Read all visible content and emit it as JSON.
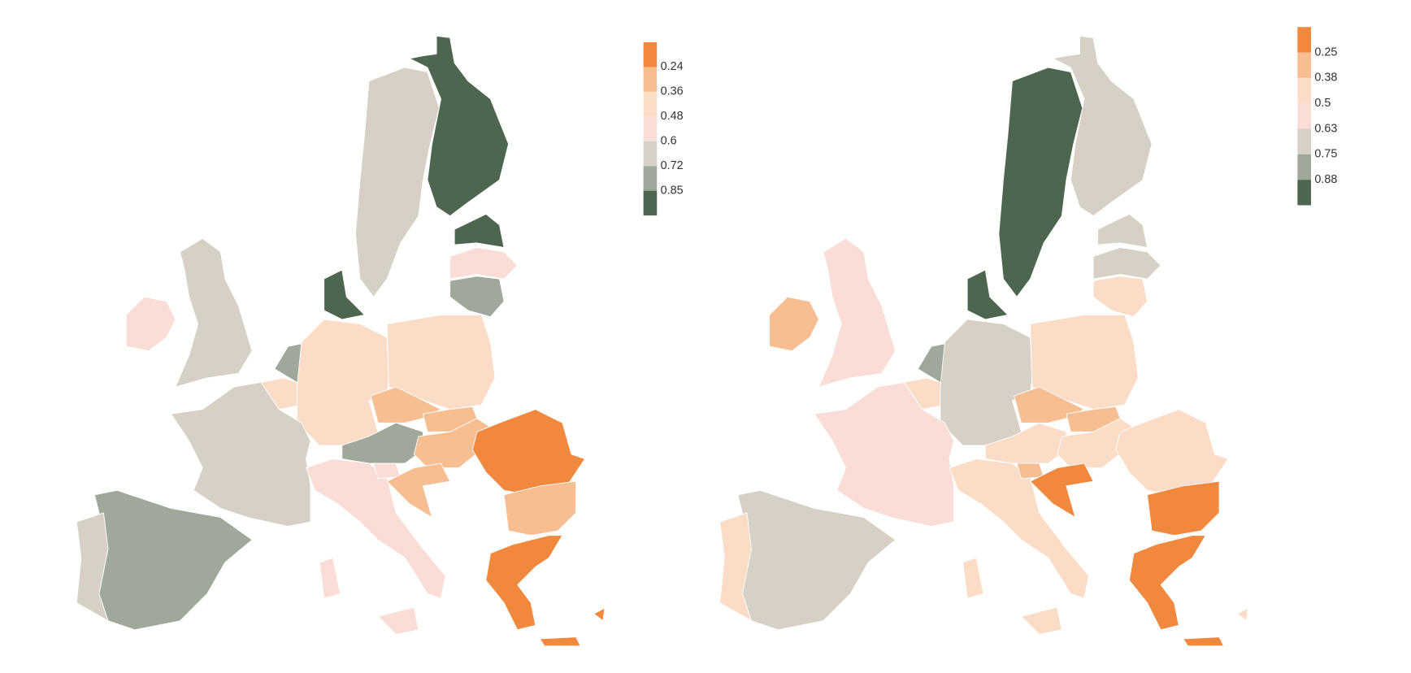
{
  "maps": [
    {
      "legend": {
        "colors": [
          "#f0883e",
          "#f7be91",
          "#fbdcc7",
          "#f9ddd6",
          "#d6d0c6",
          "#9fa89a",
          "#4e6650"
        ],
        "labels": [
          0.24,
          0.36,
          0.48,
          0.6,
          0.72,
          0.85
        ]
      }
    },
    {
      "legend": {
        "colors": [
          "#f0883e",
          "#f7be91",
          "#fbdcc7",
          "#f9ddd6",
          "#d6d0c6",
          "#9fa89a",
          "#4e6650"
        ],
        "labels": [
          0.25,
          0.38,
          0.5,
          0.63,
          0.75,
          0.88
        ]
      }
    }
  ]
}
